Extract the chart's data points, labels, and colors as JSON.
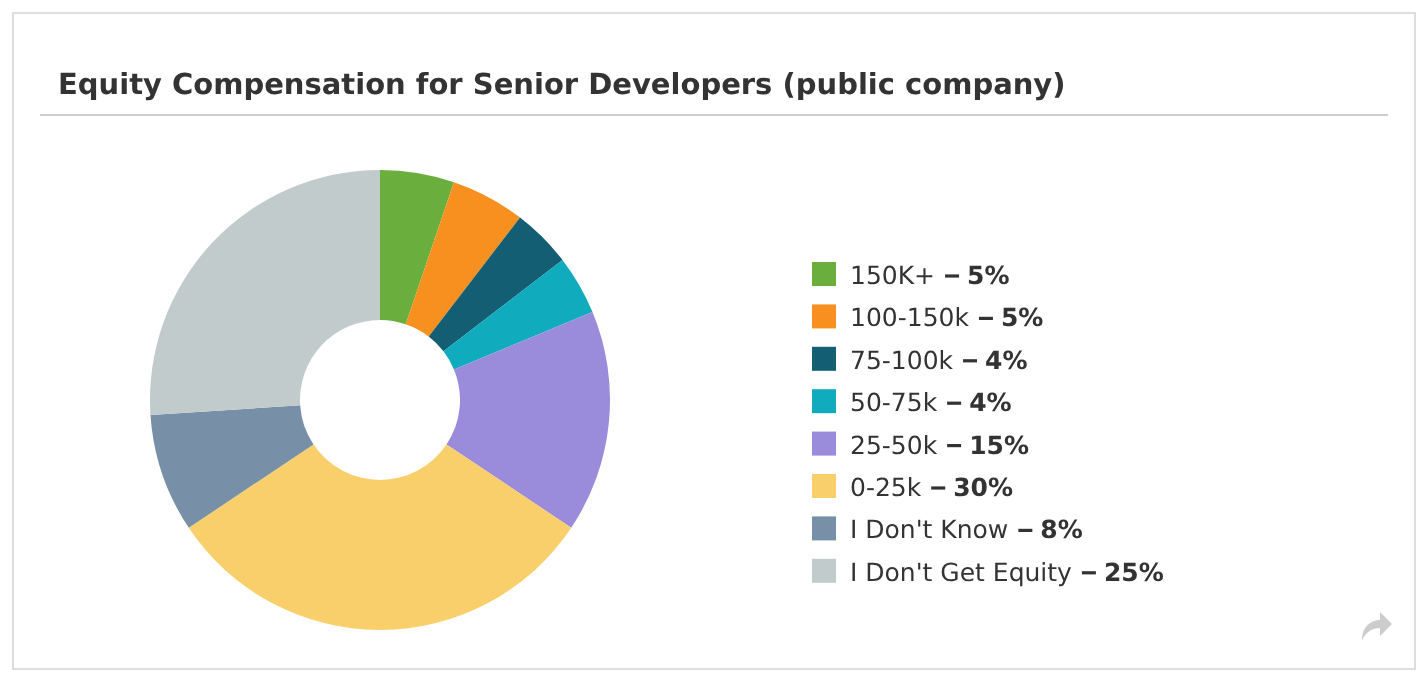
{
  "chart_data": {
    "type": "donut",
    "title": "Equity Compensation for Senior Developers (public company)",
    "categories": [
      "150K+",
      "100-150k",
      "75-100k",
      "50-75k",
      "25-50k",
      "0-25k",
      "I Don't Know",
      "I Don't Get Equity"
    ],
    "values": [
      5,
      5,
      4,
      4,
      15,
      30,
      8,
      25
    ],
    "value_labels": [
      "5%",
      "5%",
      "4%",
      "4%",
      "15%",
      "30%",
      "8%",
      "25%"
    ],
    "colors": [
      "#6aaf3d",
      "#f7901e",
      "#135e73",
      "#10abbd",
      "#9b8bdb",
      "#f8cf6b",
      "#7790a8",
      "#c2cbcb"
    ],
    "legend": "right"
  }
}
